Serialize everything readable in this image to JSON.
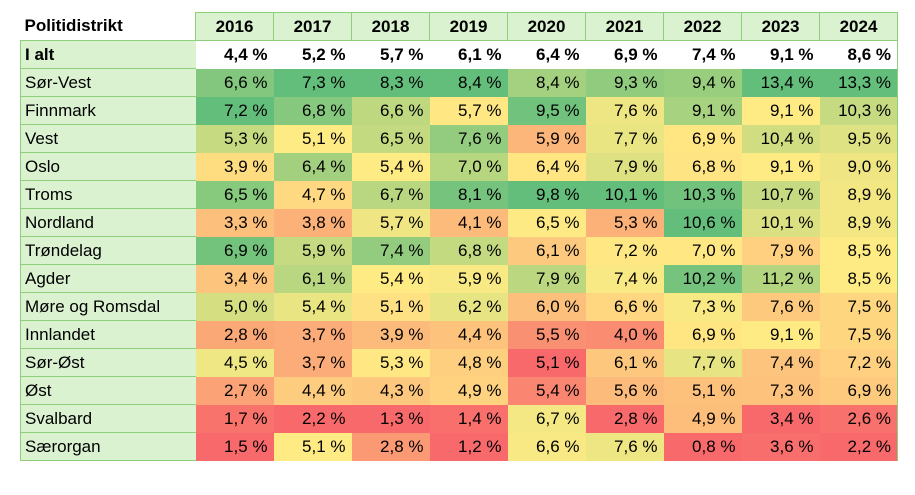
{
  "chart_data": {
    "type": "heatmap",
    "row_header": "Politidistrikt",
    "columns": [
      "2016",
      "2017",
      "2018",
      "2019",
      "2020",
      "2021",
      "2022",
      "2023",
      "2024"
    ],
    "total": {
      "label": "I alt",
      "values": [
        "4,4 %",
        "5,2 %",
        "5,7 %",
        "6,1 %",
        "6,4 %",
        "6,9 %",
        "7,4 %",
        "9,1 %",
        "8,6 %"
      ]
    },
    "rows": [
      {
        "label": "Sør-Vest",
        "values": [
          "6,6 %",
          "7,3 %",
          "8,3 %",
          "8,4 %",
          "8,4 %",
          "9,3 %",
          "9,4 %",
          "13,4 %",
          "13,3 %"
        ]
      },
      {
        "label": "Finnmark",
        "values": [
          "7,2 %",
          "6,8 %",
          "6,6 %",
          "5,7 %",
          "9,5 %",
          "7,6 %",
          "9,1 %",
          "9,1 %",
          "10,3 %"
        ]
      },
      {
        "label": "Vest",
        "values": [
          "5,3 %",
          "5,1 %",
          "6,5 %",
          "7,6 %",
          "5,9 %",
          "7,7 %",
          "6,9 %",
          "10,4 %",
          "9,5 %"
        ]
      },
      {
        "label": "Oslo",
        "values": [
          "3,9 %",
          "6,4 %",
          "5,4 %",
          "7,0 %",
          "6,4 %",
          "7,9 %",
          "6,8 %",
          "9,1 %",
          "9,0 %"
        ]
      },
      {
        "label": "Troms",
        "values": [
          "6,5 %",
          "4,7 %",
          "6,7 %",
          "8,1 %",
          "9,8 %",
          "10,1 %",
          "10,3 %",
          "10,7 %",
          "8,9 %"
        ]
      },
      {
        "label": "Nordland",
        "values": [
          "3,3 %",
          "3,8 %",
          "5,7 %",
          "4,1 %",
          "6,5 %",
          "5,3 %",
          "10,6 %",
          "10,1 %",
          "8,9 %"
        ]
      },
      {
        "label": "Trøndelag",
        "values": [
          "6,9 %",
          "5,9 %",
          "7,4 %",
          "6,8 %",
          "6,1 %",
          "7,2 %",
          "7,0 %",
          "7,9 %",
          "8,5 %"
        ]
      },
      {
        "label": "Agder",
        "values": [
          "3,4 %",
          "6,1 %",
          "5,4 %",
          "5,9 %",
          "7,9 %",
          "7,4 %",
          "10,2 %",
          "11,2 %",
          "8,5 %"
        ]
      },
      {
        "label": "Møre og Romsdal",
        "values": [
          "5,0 %",
          "5,4 %",
          "5,1 %",
          "6,2 %",
          "6,0 %",
          "6,6 %",
          "7,3 %",
          "7,6 %",
          "7,5 %"
        ]
      },
      {
        "label": "Innlandet",
        "values": [
          "2,8 %",
          "3,7 %",
          "3,9 %",
          "4,4 %",
          "5,5 %",
          "4,0 %",
          "6,9 %",
          "9,1 %",
          "7,5 %"
        ]
      },
      {
        "label": "Sør-Øst",
        "values": [
          "4,5 %",
          "3,7 %",
          "5,3 %",
          "4,8 %",
          "5,1 %",
          "6,1 %",
          "7,7 %",
          "7,4 %",
          "7,2 %"
        ]
      },
      {
        "label": "Øst",
        "values": [
          "2,7 %",
          "4,4 %",
          "4,3 %",
          "4,9 %",
          "5,4 %",
          "5,6 %",
          "5,1 %",
          "7,3 %",
          "6,9 %"
        ]
      },
      {
        "label": "Svalbard",
        "values": [
          "1,7 %",
          "2,2 %",
          "1,3 %",
          "1,4 %",
          "6,7 %",
          "2,8 %",
          "4,9 %",
          "3,4 %",
          "2,6 %"
        ]
      },
      {
        "label": "Særorgan",
        "values": [
          "1,5 %",
          "5,1 %",
          "2,8 %",
          "1,2 %",
          "6,6 %",
          "7,6 %",
          "0,8 %",
          "3,6 %",
          "2,2 %"
        ]
      }
    ],
    "color_scale": {
      "low": "#F8696B",
      "mid": "#FFEB84",
      "high": "#63BE7B",
      "scope": "per column"
    },
    "header_fill": "#DAF2D0",
    "border_color": "#8ED07A"
  }
}
